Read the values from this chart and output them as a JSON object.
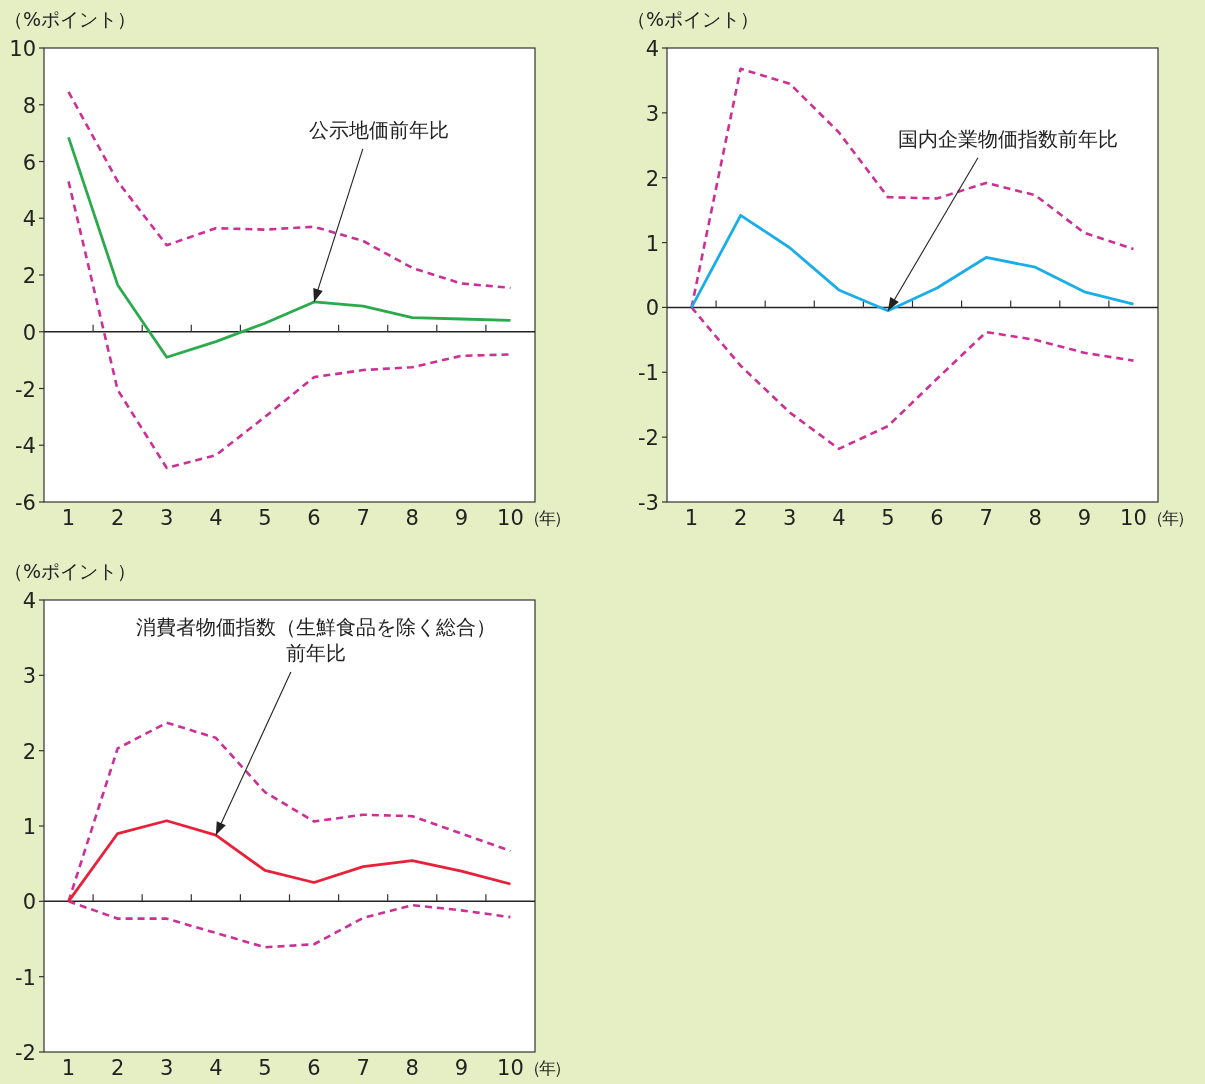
{
  "chart_data": [
    {
      "type": "line",
      "ylabel": "（%ポイント）",
      "xlabel": "（年）",
      "categories": [
        "1",
        "2",
        "3",
        "4",
        "5",
        "6",
        "7",
        "8",
        "9",
        "10"
      ],
      "ylim": [
        -6,
        10
      ],
      "yticks": [
        -6,
        -4,
        -2,
        0,
        2,
        4,
        6,
        8,
        10
      ],
      "series": [
        {
          "color": "#cc2f95",
          "line_style": "dashed",
          "values": [
            8.45,
            5.3,
            3.05,
            3.65,
            3.6,
            3.7,
            3.2,
            2.25,
            1.7,
            1.55
          ]
        },
        {
          "color": "#cc2f95",
          "line_style": "dashed",
          "values": [
            5.3,
            -2.05,
            -4.8,
            -4.35,
            -3.0,
            -1.6,
            -1.35,
            -1.25,
            -0.85,
            -0.8
          ]
        },
        {
          "color": "#2aaa4a",
          "line_style": "solid",
          "values": [
            6.85,
            1.65,
            -0.9,
            -0.35,
            0.3,
            1.05,
            0.9,
            0.5,
            0.45,
            0.4
          ]
        }
      ],
      "annotations": [
        {
          "text": "公示地価前年比",
          "x": "6",
          "y": 1.05
        }
      ]
    },
    {
      "type": "line",
      "ylabel": "（%ポイント）",
      "xlabel": "（年）",
      "categories": [
        "1",
        "2",
        "3",
        "4",
        "5",
        "6",
        "7",
        "8",
        "9",
        "10"
      ],
      "ylim": [
        -3,
        4
      ],
      "yticks": [
        -3,
        -2,
        -1,
        0,
        1,
        2,
        3,
        4
      ],
      "series": [
        {
          "color": "#cc2f95",
          "line_style": "dashed",
          "values": [
            0,
            3.68,
            3.45,
            2.7,
            1.7,
            1.68,
            1.92,
            1.73,
            1.15,
            0.9
          ]
        },
        {
          "color": "#cc2f95",
          "line_style": "dashed",
          "values": [
            0,
            -0.9,
            -1.62,
            -2.18,
            -1.83,
            -1.1,
            -0.38,
            -0.5,
            -0.7,
            -0.82
          ]
        },
        {
          "color": "#1aaee8",
          "line_style": "solid",
          "values": [
            0,
            1.42,
            0.92,
            0.27,
            -0.05,
            0.3,
            0.77,
            0.62,
            0.24,
            0.05
          ]
        }
      ],
      "annotations": [
        {
          "text": "国内企業物価指数前年比",
          "x": "5",
          "y": -0.05
        }
      ]
    },
    {
      "type": "line",
      "ylabel": "（%ポイント）",
      "xlabel": "（年）",
      "categories": [
        "1",
        "2",
        "3",
        "4",
        "5",
        "6",
        "7",
        "8",
        "9",
        "10"
      ],
      "ylim": [
        -2,
        4
      ],
      "yticks": [
        -2,
        -1,
        0,
        1,
        2,
        3,
        4
      ],
      "series": [
        {
          "color": "#cc2f95",
          "line_style": "dashed",
          "values": [
            0,
            2.03,
            2.37,
            2.17,
            1.45,
            1.06,
            1.15,
            1.13,
            0.9,
            0.67
          ]
        },
        {
          "color": "#cc2f95",
          "line_style": "dashed",
          "values": [
            0,
            -0.23,
            -0.23,
            -0.42,
            -0.61,
            -0.57,
            -0.22,
            -0.05,
            -0.12,
            -0.21
          ]
        },
        {
          "color": "#e8203a",
          "line_style": "solid",
          "values": [
            0,
            0.9,
            1.07,
            0.88,
            0.41,
            0.25,
            0.46,
            0.54,
            0.4,
            0.23
          ]
        }
      ],
      "annotations": [
        {
          "text": "消費者物価指数（生鮮食品を除く総合）前年比",
          "x": "4",
          "y": 0.88
        }
      ]
    }
  ]
}
